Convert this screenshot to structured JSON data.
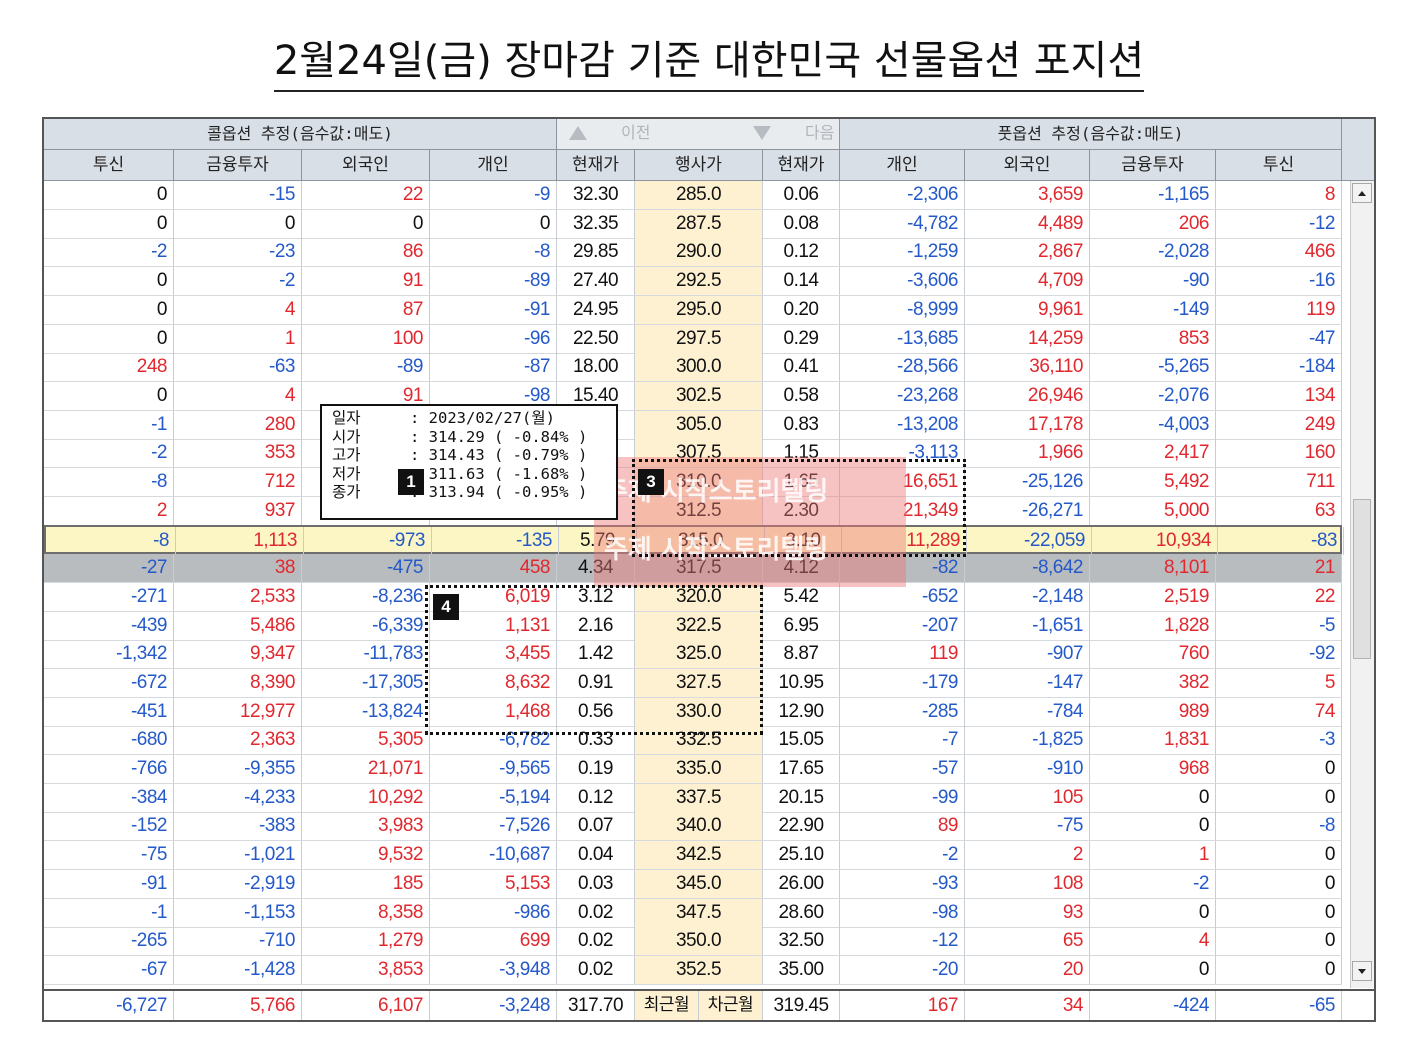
{
  "title": "2월24일(금) 장마감 기준 대한민국 선물옵션 포지션",
  "header": {
    "call_group": "콜옵션 추정(음수값:매도)",
    "put_group": "풋옵션 추정(음수값:매도)",
    "prev_label": "이전",
    "next_label": "다음",
    "columns": [
      "투신",
      "금융투자",
      "외국인",
      "개인",
      "현재가",
      "행사가",
      "현재가",
      "개인",
      "외국인",
      "금융투자",
      "투신"
    ]
  },
  "rows": [
    {
      "c_tusin": "0",
      "c_fin": "-15",
      "c_for": "22",
      "c_ind": "-9",
      "call": "32.30",
      "strike": "285.0",
      "put": "0.06",
      "p_ind": "-2,306",
      "p_for": "3,659",
      "p_fin": "-1,165",
      "p_tusin": "8"
    },
    {
      "c_tusin": "0",
      "c_fin": "0",
      "c_for": "0",
      "c_ind": "0",
      "call": "32.35",
      "strike": "287.5",
      "put": "0.08",
      "p_ind": "-4,782",
      "p_for": "4,489",
      "p_fin": "206",
      "p_tusin": "-12"
    },
    {
      "c_tusin": "-2",
      "c_fin": "-23",
      "c_for": "86",
      "c_ind": "-8",
      "call": "29.85",
      "strike": "290.0",
      "put": "0.12",
      "p_ind": "-1,259",
      "p_for": "2,867",
      "p_fin": "-2,028",
      "p_tusin": "466"
    },
    {
      "c_tusin": "0",
      "c_fin": "-2",
      "c_for": "91",
      "c_ind": "-89",
      "call": "27.40",
      "strike": "292.5",
      "put": "0.14",
      "p_ind": "-3,606",
      "p_for": "4,709",
      "p_fin": "-90",
      "p_tusin": "-16"
    },
    {
      "c_tusin": "0",
      "c_fin": "4",
      "c_for": "87",
      "c_ind": "-91",
      "call": "24.95",
      "strike": "295.0",
      "put": "0.20",
      "p_ind": "-8,999",
      "p_for": "9,961",
      "p_fin": "-149",
      "p_tusin": "119"
    },
    {
      "c_tusin": "0",
      "c_fin": "1",
      "c_for": "100",
      "c_ind": "-96",
      "call": "22.50",
      "strike": "297.5",
      "put": "0.29",
      "p_ind": "-13,685",
      "p_for": "14,259",
      "p_fin": "853",
      "p_tusin": "-47"
    },
    {
      "c_tusin": "248",
      "c_fin": "-63",
      "c_for": "-89",
      "c_ind": "-87",
      "call": "18.00",
      "strike": "300.0",
      "put": "0.41",
      "p_ind": "-28,566",
      "p_for": "36,110",
      "p_fin": "-5,265",
      "p_tusin": "-184"
    },
    {
      "c_tusin": "0",
      "c_fin": "4",
      "c_for": "91",
      "c_ind": "-98",
      "call": "15.40",
      "strike": "302.5",
      "put": "0.58",
      "p_ind": "-23,268",
      "p_for": "26,946",
      "p_fin": "-2,076",
      "p_tusin": "134"
    },
    {
      "c_tusin": "-1",
      "c_fin": "280",
      "c_for": "",
      "c_ind": "",
      "call": "",
      "strike": "305.0",
      "put": "0.83",
      "p_ind": "-13,208",
      "p_for": "17,178",
      "p_fin": "-4,003",
      "p_tusin": "249"
    },
    {
      "c_tusin": "-2",
      "c_fin": "353",
      "c_for": "",
      "c_ind": "",
      "call": "",
      "strike": "307.5",
      "put": "1.15",
      "p_ind": "-3,113",
      "p_for": "1,966",
      "p_fin": "2,417",
      "p_tusin": "160"
    },
    {
      "c_tusin": "-8",
      "c_fin": "712",
      "c_for": "",
      "c_ind": "",
      "call": "",
      "strike": "310.0",
      "put": "1.65",
      "p_ind": "16,651",
      "p_for": "-25,126",
      "p_fin": "5,492",
      "p_tusin": "711"
    },
    {
      "c_tusin": "2",
      "c_fin": "937",
      "c_for": "",
      "c_ind": "",
      "call": "",
      "strike": "312.5",
      "put": "2.30",
      "p_ind": "21,349",
      "p_for": "-26,271",
      "p_fin": "5,000",
      "p_tusin": "63"
    },
    {
      "c_tusin": "-8",
      "c_fin": "1,113",
      "c_for": "-973",
      "c_ind": "-135",
      "call": "5.79",
      "strike": "315.0",
      "put": "3.10",
      "p_ind": "11,289",
      "p_for": "-22,059",
      "p_fin": "10,934",
      "p_tusin": "-83"
    },
    {
      "c_tusin": "-27",
      "c_fin": "38",
      "c_for": "-475",
      "c_ind": "458",
      "call": "4.34",
      "strike": "317.5",
      "put": "4.12",
      "p_ind": "-82",
      "p_for": "-8,642",
      "p_fin": "8,101",
      "p_tusin": "21"
    },
    {
      "c_tusin": "-271",
      "c_fin": "2,533",
      "c_for": "-8,236",
      "c_ind": "6,019",
      "call": "3.12",
      "strike": "320.0",
      "put": "5.42",
      "p_ind": "-652",
      "p_for": "-2,148",
      "p_fin": "2,519",
      "p_tusin": "22"
    },
    {
      "c_tusin": "-439",
      "c_fin": "5,486",
      "c_for": "-6,339",
      "c_ind": "1,131",
      "call": "2.16",
      "strike": "322.5",
      "put": "6.95",
      "p_ind": "-207",
      "p_for": "-1,651",
      "p_fin": "1,828",
      "p_tusin": "-5"
    },
    {
      "c_tusin": "-1,342",
      "c_fin": "9,347",
      "c_for": "-11,783",
      "c_ind": "3,455",
      "call": "1.42",
      "strike": "325.0",
      "put": "8.87",
      "p_ind": "119",
      "p_for": "-907",
      "p_fin": "760",
      "p_tusin": "-92"
    },
    {
      "c_tusin": "-672",
      "c_fin": "8,390",
      "c_for": "-17,305",
      "c_ind": "8,632",
      "call": "0.91",
      "strike": "327.5",
      "put": "10.95",
      "p_ind": "-179",
      "p_for": "-147",
      "p_fin": "382",
      "p_tusin": "5"
    },
    {
      "c_tusin": "-451",
      "c_fin": "12,977",
      "c_for": "-13,824",
      "c_ind": "1,468",
      "call": "0.56",
      "strike": "330.0",
      "put": "12.90",
      "p_ind": "-285",
      "p_for": "-784",
      "p_fin": "989",
      "p_tusin": "74"
    },
    {
      "c_tusin": "-680",
      "c_fin": "2,363",
      "c_for": "5,305",
      "c_ind": "-6,782",
      "call": "0.33",
      "strike": "332.5",
      "put": "15.05",
      "p_ind": "-7",
      "p_for": "-1,825",
      "p_fin": "1,831",
      "p_tusin": "-3"
    },
    {
      "c_tusin": "-766",
      "c_fin": "-9,355",
      "c_for": "21,071",
      "c_ind": "-9,565",
      "call": "0.19",
      "strike": "335.0",
      "put": "17.65",
      "p_ind": "-57",
      "p_for": "-910",
      "p_fin": "968",
      "p_tusin": "0"
    },
    {
      "c_tusin": "-384",
      "c_fin": "-4,233",
      "c_for": "10,292",
      "c_ind": "-5,194",
      "call": "0.12",
      "strike": "337.5",
      "put": "20.15",
      "p_ind": "-99",
      "p_for": "105",
      "p_fin": "0",
      "p_tusin": "0"
    },
    {
      "c_tusin": "-152",
      "c_fin": "-383",
      "c_for": "3,983",
      "c_ind": "-7,526",
      "call": "0.07",
      "strike": "340.0",
      "put": "22.90",
      "p_ind": "89",
      "p_for": "-75",
      "p_fin": "0",
      "p_tusin": "-8"
    },
    {
      "c_tusin": "-75",
      "c_fin": "-1,021",
      "c_for": "9,532",
      "c_ind": "-10,687",
      "call": "0.04",
      "strike": "342.5",
      "put": "25.10",
      "p_ind": "-2",
      "p_for": "2",
      "p_fin": "1",
      "p_tusin": "0"
    },
    {
      "c_tusin": "-91",
      "c_fin": "-2,919",
      "c_for": "185",
      "c_ind": "5,153",
      "call": "0.03",
      "strike": "345.0",
      "put": "26.00",
      "p_ind": "-93",
      "p_for": "108",
      "p_fin": "-2",
      "p_tusin": "0"
    },
    {
      "c_tusin": "-1",
      "c_fin": "-1,153",
      "c_for": "8,358",
      "c_ind": "-986",
      "call": "0.02",
      "strike": "347.5",
      "put": "28.60",
      "p_ind": "-98",
      "p_for": "93",
      "p_fin": "0",
      "p_tusin": "0"
    },
    {
      "c_tusin": "-265",
      "c_fin": "-710",
      "c_for": "1,279",
      "c_ind": "699",
      "call": "0.02",
      "strike": "350.0",
      "put": "32.50",
      "p_ind": "-12",
      "p_for": "65",
      "p_fin": "4",
      "p_tusin": "0"
    },
    {
      "c_tusin": "-67",
      "c_fin": "-1,428",
      "c_for": "3,853",
      "c_ind": "-3,948",
      "call": "0.02",
      "strike": "352.5",
      "put": "35.00",
      "p_ind": "-20",
      "p_for": "20",
      "p_fin": "0",
      "p_tusin": "0"
    }
  ],
  "footer": {
    "c_tusin": "-6,727",
    "c_fin": "5,766",
    "c_for": "6,107",
    "c_ind": "-3,248",
    "call": "317.70",
    "near_label": "최근월",
    "next_label": "차근월",
    "put": "319.45",
    "p_ind": "167",
    "p_for": "34",
    "p_fin": "-424",
    "p_tusin": "-65"
  },
  "info_popup": {
    "lines": [
      {
        "label": "일자",
        "value": ": 2023/02/27(월)"
      },
      {
        "label": "시가",
        "value": ": 314.29 ( -0.84% )"
      },
      {
        "label": "고가",
        "value": ": 314.43 ( -0.79% )"
      },
      {
        "label": "저가",
        "value": ": 311.63 ( -1.68% )"
      },
      {
        "label": "종가",
        "value": ": 313.94 ( -0.95% )"
      }
    ]
  },
  "badges": [
    "1",
    "3",
    "4"
  ],
  "watermark": {
    "line1": "주제 시작스토리텔링",
    "line2": "주제 시작스토리텔링"
  },
  "colors": {
    "positive": "#e0282e",
    "negative": "#2459c9",
    "strike_bg": "#fdf1d2",
    "highlight_row": "#fbf6c4",
    "selected_row": "#b9bcbf",
    "header_bg": "#d9dfe7"
  }
}
